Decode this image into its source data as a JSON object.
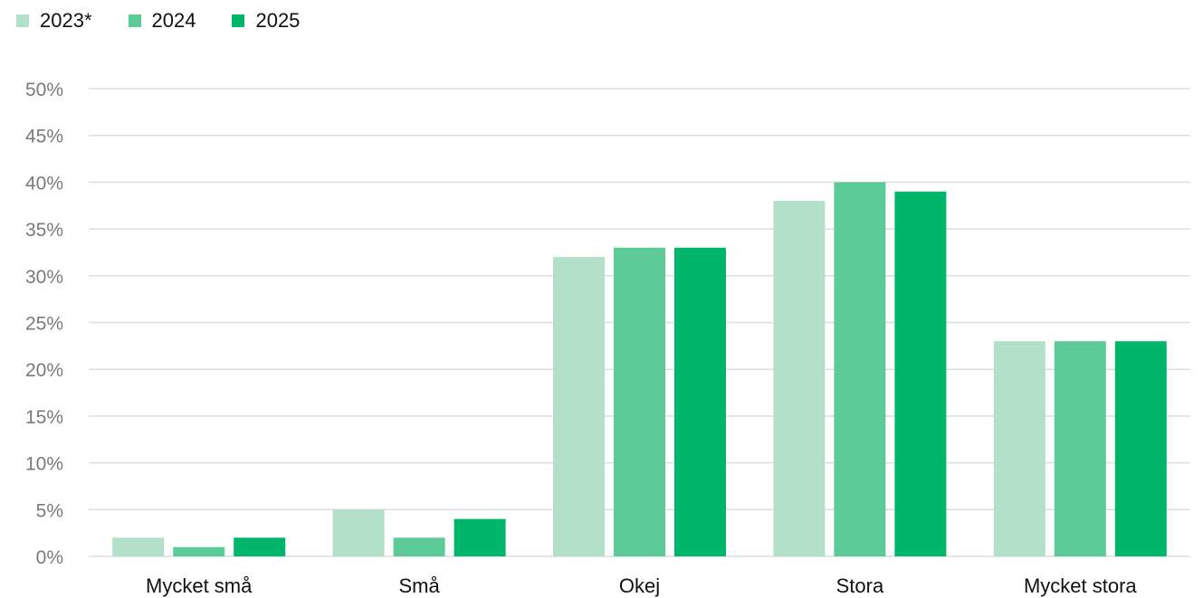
{
  "chart_data": {
    "type": "bar",
    "categories": [
      "Mycket små",
      "Små",
      "Okej",
      "Stora",
      "Mycket stora"
    ],
    "series": [
      {
        "name": "2023*",
        "color": "#b3e0c8",
        "values": [
          2,
          5,
          32,
          38,
          23
        ]
      },
      {
        "name": "2024",
        "color": "#5ccb98",
        "values": [
          1,
          2,
          33,
          40,
          23
        ]
      },
      {
        "name": "2025",
        "color": "#00b66a",
        "values": [
          2,
          4,
          33,
          39,
          23
        ]
      }
    ],
    "yticks": [
      "0%",
      "5%",
      "10%",
      "15%",
      "20%",
      "25%",
      "30%",
      "35%",
      "40%",
      "45%",
      "50%"
    ],
    "ylim": [
      0,
      50
    ],
    "grid": true,
    "legend_position": "top-left"
  }
}
